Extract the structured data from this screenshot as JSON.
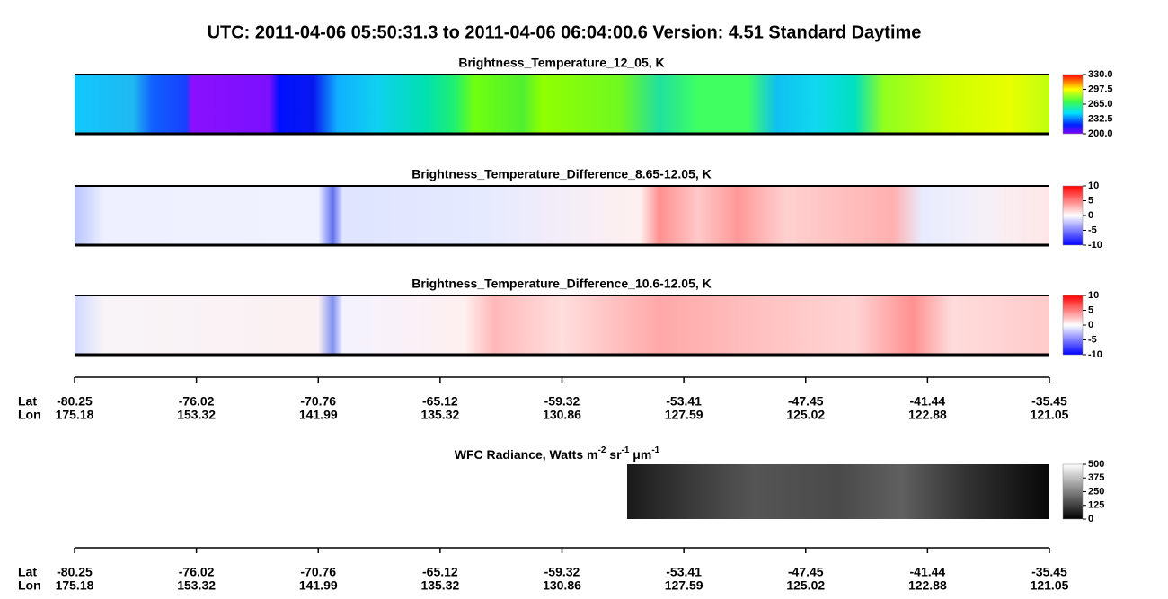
{
  "title": "UTC:  2011-04-06   05:50:31.3  to  2011-04-06   06:04:00.6    Version: 4.51  Standard Daytime",
  "panels": [
    {
      "title": "Brightness_Temperature_12_05, K",
      "colorbar_ticks": [
        "330.0",
        "297.5",
        "265.0",
        "232.5",
        "200.0"
      ]
    },
    {
      "title": "Brightness_Temperature_Difference_8.65-12.05, K",
      "colorbar_ticks": [
        "10",
        "5",
        "0",
        "-5",
        "-10"
      ]
    },
    {
      "title": "Brightness_Temperature_Difference_10.6-12.05, K",
      "colorbar_ticks": [
        "10",
        "5",
        "0",
        "-5",
        "-10"
      ]
    }
  ],
  "axes": [
    {
      "row_labels": [
        "Lat",
        "Lon"
      ],
      "lat": [
        "-80.25",
        "-76.02",
        "-70.76",
        "-65.12",
        "-59.32",
        "-53.41",
        "-47.45",
        "-41.44",
        "-35.45"
      ],
      "lon": [
        "175.18",
        "153.32",
        "141.99",
        "135.32",
        "130.86",
        "127.59",
        "125.02",
        "122.88",
        "121.05"
      ]
    },
    {
      "row_labels": [
        "Lat",
        "Lon"
      ],
      "lat": [
        "-80.25",
        "-76.02",
        "-70.76",
        "-65.12",
        "-59.32",
        "-53.41",
        "-47.45",
        "-41.44",
        "-35.45"
      ],
      "lon": [
        "175.18",
        "153.32",
        "141.99",
        "135.32",
        "130.86",
        "127.59",
        "125.02",
        "122.88",
        "121.05"
      ]
    }
  ],
  "wfc": {
    "title_parts": [
      "WFC Radiance, Watts m",
      "-2",
      " sr",
      "-1",
      " μm",
      "-1"
    ],
    "colorbar_ticks": [
      "500",
      "375",
      "250",
      "125",
      "0"
    ]
  }
}
